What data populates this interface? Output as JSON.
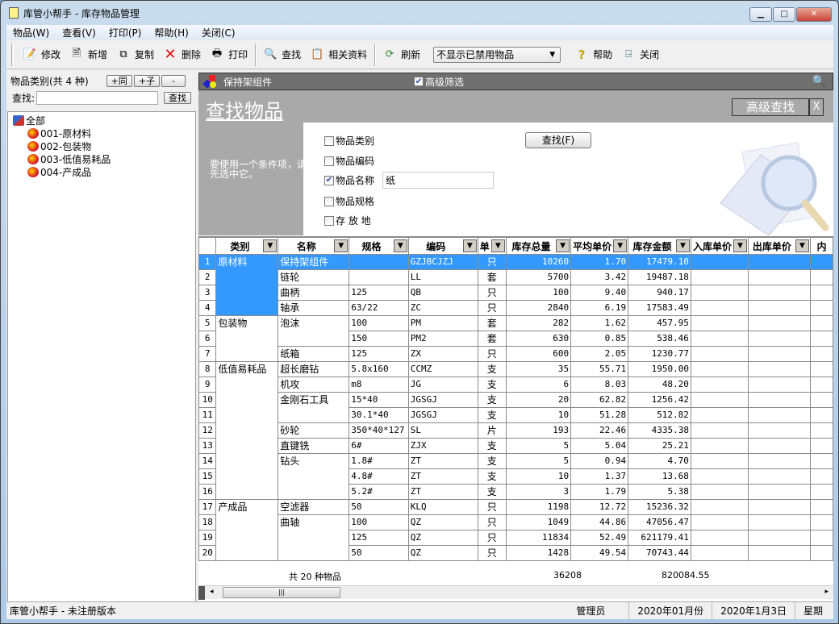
{
  "window": {
    "title": "库管小帮手 - 库存物品管理",
    "controls": [
      "▁",
      "□",
      "✕"
    ]
  },
  "menu": [
    "物品(W)",
    "查看(V)",
    "打印(P)",
    "帮助(H)",
    "关闭(C)"
  ],
  "toolbar": {
    "edit": "修改",
    "new": "新增",
    "copy": "复制",
    "delete": "删除",
    "print": "打印",
    "find": "查找",
    "related": "相关资料",
    "refresh": "刷新",
    "filter_value": "不显示已禁用物品",
    "help": "帮助",
    "close": "关闭"
  },
  "left": {
    "header": "物品类别(共 4 种)",
    "add_same": "+同",
    "add_child": "+子",
    "remove": "-",
    "search_label": "查找:",
    "search_value": "",
    "search_button": "查找",
    "tree": {
      "root": "全部",
      "children": [
        "001-原材料",
        "002-包装物",
        "003-低值易耗品",
        "004-产成品"
      ]
    }
  },
  "right": {
    "current_item": "保持架组件",
    "advanced_filter_label": "高级筛选",
    "advanced_filter_checked": true
  },
  "search_panel": {
    "title": "查找物品",
    "advanced_button": "高级查找",
    "close_button": "X",
    "hint": "要使用一个条件项，请先选中它。",
    "find_button": "查找(F)",
    "conditions": [
      {
        "label": "物品类别",
        "checked": false
      },
      {
        "label": "物品编码",
        "checked": false
      },
      {
        "label": "物品名称",
        "checked": true,
        "value": "纸"
      },
      {
        "label": "物品规格",
        "checked": false
      },
      {
        "label": "存 放 地",
        "checked": false
      }
    ]
  },
  "table": {
    "columns": [
      "",
      "类别",
      "名称",
      "规格",
      "编码",
      "单",
      "库存总量",
      "平均单价",
      "库存金额",
      "入库单价",
      "出库单价",
      "内"
    ],
    "selected_row": 1,
    "rows": [
      [
        1,
        "原材料",
        "保持架组件",
        "",
        "GZJBCJZJ",
        "只",
        "10260",
        "1.70",
        "17479.10"
      ],
      [
        2,
        "原材料",
        "链轮",
        "",
        "LL",
        "套",
        "5700",
        "3.42",
        "19487.18"
      ],
      [
        3,
        "原材料",
        "曲柄",
        "125",
        "QB",
        "只",
        "100",
        "9.40",
        "940.17"
      ],
      [
        4,
        "原材料",
        "轴承",
        "63/22",
        "ZC",
        "只",
        "2840",
        "6.19",
        "17583.49"
      ],
      [
        5,
        "包装物",
        "泡沫",
        "100",
        "PM",
        "套",
        "282",
        "1.62",
        "457.95"
      ],
      [
        6,
        "包装物",
        "泡沫",
        "150",
        "PM2",
        "套",
        "630",
        "0.85",
        "538.46"
      ],
      [
        7,
        "包装物",
        "纸箱",
        "125",
        "ZX",
        "只",
        "600",
        "2.05",
        "1230.77"
      ],
      [
        8,
        "低值易耗品",
        "超长磨钻",
        "5.8x160",
        "CCMZ",
        "支",
        "35",
        "55.71",
        "1950.00"
      ],
      [
        9,
        "低值易耗品",
        "机攻",
        "m8",
        "JG",
        "支",
        "6",
        "8.03",
        "48.20"
      ],
      [
        10,
        "低值易耗品",
        "金刚石工具",
        "15*40",
        "JGSGJ",
        "支",
        "20",
        "62.82",
        "1256.42"
      ],
      [
        11,
        "低值易耗品",
        "金刚石工具",
        "30.1*40",
        "JGSGJ",
        "支",
        "10",
        "51.28",
        "512.82"
      ],
      [
        12,
        "低值易耗品",
        "砂轮",
        "350*40*127",
        "SL",
        "片",
        "193",
        "22.46",
        "4335.38"
      ],
      [
        13,
        "低值易耗品",
        "直键铣",
        "6#",
        "ZJX",
        "支",
        "5",
        "5.04",
        "25.21"
      ],
      [
        14,
        "低值易耗品",
        "钻头",
        "1.8#",
        "ZT",
        "支",
        "5",
        "0.94",
        "4.70"
      ],
      [
        15,
        "低值易耗品",
        "钻头",
        "4.8#",
        "ZT",
        "支",
        "10",
        "1.37",
        "13.68"
      ],
      [
        16,
        "低值易耗品",
        "钻头",
        "5.2#",
        "ZT",
        "支",
        "3",
        "1.79",
        "5.38"
      ],
      [
        17,
        "产成品",
        "空滤器",
        "50",
        "KLQ",
        "只",
        "1198",
        "12.72",
        "15236.32"
      ],
      [
        18,
        "产成品",
        "曲轴",
        "100",
        "QZ",
        "只",
        "1049",
        "44.86",
        "47056.47"
      ],
      [
        19,
        "产成品",
        "曲轴",
        "125",
        "QZ",
        "只",
        "11834",
        "52.49",
        "621179.41"
      ],
      [
        20,
        "产成品",
        "曲轴",
        "50",
        "QZ",
        "只",
        "1428",
        "49.54",
        "70743.44"
      ]
    ],
    "total_label": "共 20 种物品",
    "total_qty": "36208",
    "total_amount": "820084.55"
  },
  "status": {
    "app": "库管小帮手 - 未注册版本",
    "user": "管理员",
    "period": "2020年01月份",
    "date": "2020年1月3日",
    "weekday": "星期"
  },
  "colors": {
    "selection": "#3399ff",
    "panel_gray": "#a9a9a9",
    "header_bar": "#6f6f6f"
  }
}
